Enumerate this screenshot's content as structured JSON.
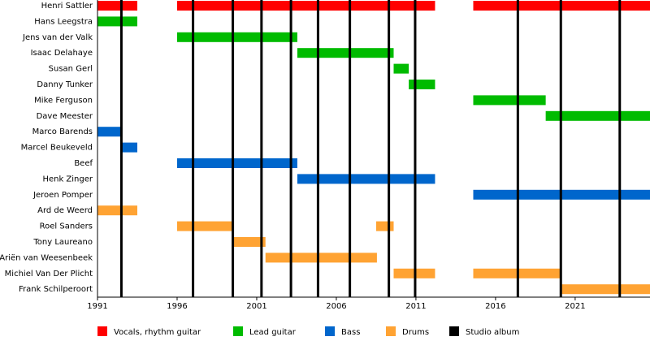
{
  "chart_data": {
    "type": "timeline",
    "categories": [
      "Henri Sattler",
      "Hans Leegstra",
      "Jens van der Valk",
      "Isaac Delahaye",
      "Susan Gerl",
      "Danny Tunker",
      "Mike Ferguson",
      "Dave Meester",
      "Marco Barends",
      "Marcel Beukeveld",
      "Beef",
      "Henk Zinger",
      "Jeroen Pomper",
      "Ard de Weerd",
      "Roel Sanders",
      "Tony Laureano",
      "Ariën van Weesenbeek",
      "Michiel Van Der Plicht",
      "Frank Schilperoort"
    ],
    "series": [
      {
        "name": "Vocals, rhythm guitar",
        "color": "#ff0000",
        "values": [
          [
            [
              1991,
              1993.5
            ],
            [
              1996,
              2012.2
            ],
            [
              2014.6,
              2025.7
            ]
          ],
          [],
          [],
          [],
          [],
          [],
          [],
          [],
          [],
          [],
          [],
          [],
          [],
          [],
          [],
          [],
          [],
          [],
          []
        ]
      },
      {
        "name": "Lead guitar",
        "color": "#00bb00",
        "values": [
          [],
          [
            [
              1991,
              1993.5
            ]
          ],
          [
            [
              1996,
              2003.55
            ]
          ],
          [
            [
              2003.55,
              2009.6
            ]
          ],
          [
            [
              2009.6,
              2010.55
            ]
          ],
          [
            [
              2010.55,
              2012.2
            ]
          ],
          [
            [
              2014.6,
              2019.15
            ]
          ],
          [
            [
              2019.15,
              2025.7
            ]
          ],
          [],
          [],
          [],
          [],
          [],
          [],
          [],
          [],
          [],
          [],
          []
        ]
      },
      {
        "name": "Bass",
        "color": "#0066cc",
        "values": [
          [],
          [],
          [],
          [],
          [],
          [],
          [],
          [],
          [
            [
              1991,
              1992.5
            ]
          ],
          [
            [
              1992.5,
              1993.5
            ]
          ],
          [
            [
              1996,
              2003.55
            ]
          ],
          [
            [
              2003.55,
              2012.2
            ]
          ],
          [
            [
              2014.6,
              2025.7
            ]
          ],
          [],
          [],
          [],
          [],
          [],
          []
        ]
      },
      {
        "name": "Drums",
        "color": "#ffa333",
        "values": [
          [],
          [],
          [],
          [],
          [],
          [],
          [],
          [],
          [],
          [],
          [],
          [],
          [],
          [
            [
              1991,
              1993.5
            ]
          ],
          [
            [
              1996,
              1999.5
            ],
            [
              2008.5,
              2009.6
            ]
          ],
          [
            [
              1999.5,
              2001.55
            ]
          ],
          [
            [
              2001.55,
              2008.55
            ]
          ],
          [
            [
              2009.6,
              2012.2
            ],
            [
              2014.6,
              2020.1
            ]
          ],
          [
            [
              2020.1,
              2025.7
            ]
          ]
        ]
      }
    ],
    "events": {
      "name": "Studio album",
      "color": "#000000",
      "x": [
        1992.5,
        1997.0,
        1999.5,
        2001.3,
        2003.15,
        2004.85,
        2006.85,
        2009.3,
        2010.95,
        2017.4,
        2020.1,
        2023.8
      ]
    },
    "xlim": [
      1991,
      2025.7
    ],
    "xticks": [
      1991,
      1996,
      2001,
      2006,
      2011,
      2016,
      2021
    ]
  }
}
